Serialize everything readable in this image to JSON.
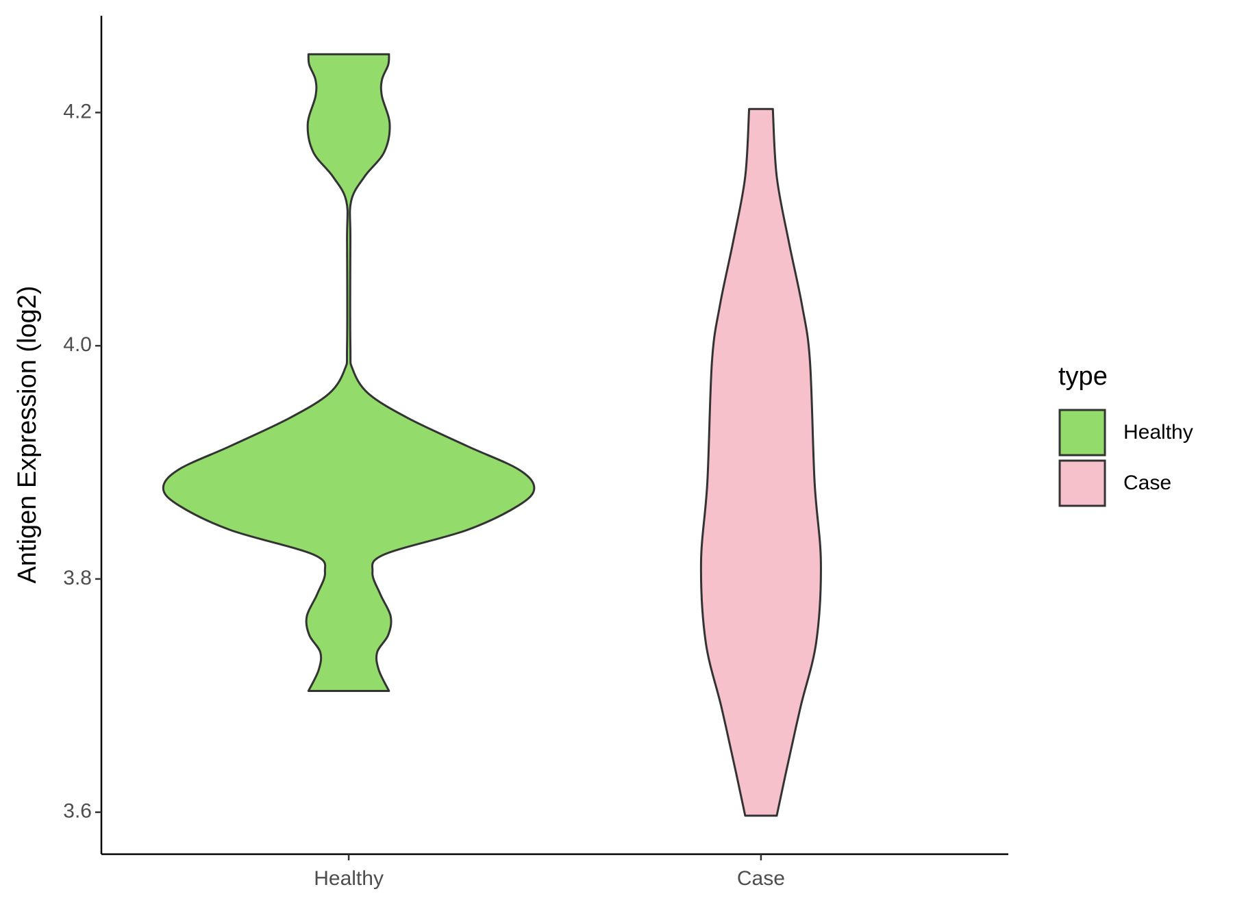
{
  "chart_data": {
    "type": "violin",
    "y_label": "Antigen Expression (log2)",
    "categories": [
      "Healthy",
      "Case"
    ],
    "legend_title": "type",
    "ylim": [
      3.564,
      4.283
    ],
    "yticks": [
      3.6,
      3.8,
      {
        "value": 4.0,
        "label": "4.0"
      },
      4.2
    ],
    "series": [
      {
        "name": "Healthy",
        "color": "#93dc6b",
        "y": [
          3.704,
          3.722,
          3.737,
          3.752,
          3.768,
          3.787,
          3.806,
          3.821,
          3.842,
          3.863,
          3.878,
          3.894,
          3.914,
          3.938,
          3.959,
          3.98,
          4.0,
          4.09,
          4.124,
          4.145,
          4.166,
          4.19,
          4.214,
          4.228,
          4.241,
          4.25
        ],
        "density": [
          0.217,
          0.162,
          0.153,
          0.213,
          0.226,
          0.17,
          0.128,
          0.191,
          0.638,
          0.915,
          1,
          0.915,
          0.638,
          0.319,
          0.106,
          0.021,
          0.009,
          0.009,
          0.013,
          0.085,
          0.191,
          0.221,
          0.179,
          0.179,
          0.213,
          0.217
        ]
      },
      {
        "name": "Case",
        "color": "#f7c1cc",
        "y": [
          3.597,
          3.635,
          3.69,
          3.746,
          3.814,
          3.883,
          3.987,
          4.035,
          4.09,
          4.145,
          4.203
        ],
        "density": [
          0.085,
          0.136,
          0.213,
          0.298,
          0.323,
          0.289,
          0.264,
          0.221,
          0.149,
          0.085,
          0.064
        ]
      }
    ]
  }
}
